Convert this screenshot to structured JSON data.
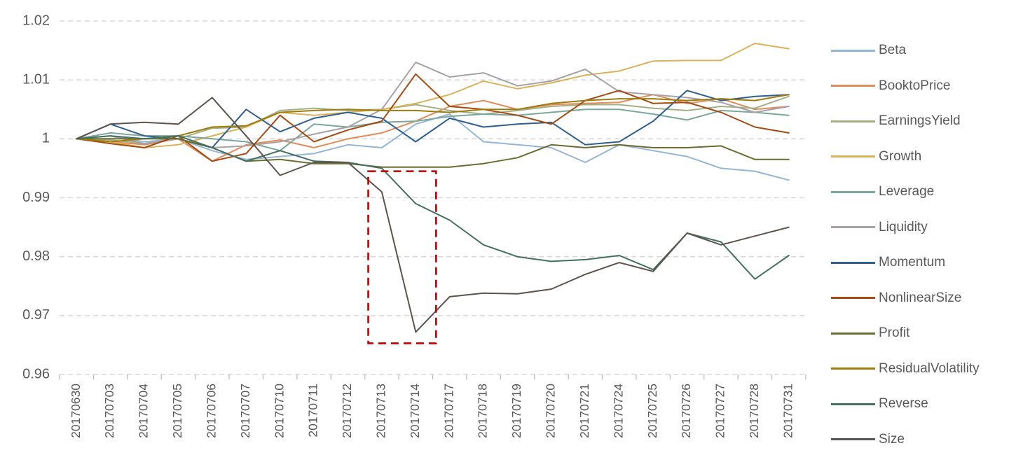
{
  "chart_data": {
    "type": "line",
    "title": "",
    "xlabel": "",
    "ylabel": "",
    "ylim": [
      0.96,
      1.02
    ],
    "yticks": [
      0.96,
      0.97,
      0.98,
      0.99,
      1,
      1.01,
      1.02
    ],
    "ytick_labels": [
      "0.96",
      "0.97",
      "0.98",
      "0.99",
      "1",
      "1.01",
      "1.02"
    ],
    "grid": "horizontal-dashed",
    "legend_position": "right",
    "x": [
      "20170630",
      "20170703",
      "20170704",
      "20170705",
      "20170706",
      "20170707",
      "20170710",
      "20170711",
      "20170712",
      "20170713",
      "20170714",
      "20170717",
      "20170718",
      "20170719",
      "20170720",
      "20170721",
      "20170724",
      "20170725",
      "20170726",
      "20170727",
      "20170728",
      "20170731"
    ],
    "series": [
      {
        "name": "Beta",
        "color": "#94B6D2",
        "values": [
          1.0,
          1.0005,
          0.9995,
          1.0,
          0.998,
          0.9965,
          0.997,
          0.9975,
          0.999,
          0.9985,
          1.0025,
          1.0042,
          0.9995,
          0.999,
          0.9985,
          0.996,
          0.999,
          0.998,
          0.997,
          0.995,
          0.9945,
          0.993
        ]
      },
      {
        "name": "BooktoPrice",
        "color": "#E08C5B",
        "values": [
          1.0,
          0.9995,
          0.999,
          1.0,
          0.9962,
          0.999,
          0.9998,
          0.9985,
          1.0,
          1.001,
          1.003,
          1.0055,
          1.0065,
          1.005,
          1.0058,
          1.006,
          1.0062,
          1.0075,
          1.006,
          1.0068,
          1.005,
          1.0055
        ]
      },
      {
        "name": "EarningsYield",
        "color": "#A3B086",
        "values": [
          1.0,
          0.9998,
          0.9992,
          1.0,
          1.0018,
          1.002,
          1.0048,
          1.0052,
          1.0048,
          1.005,
          1.0058,
          1.0048,
          1.0042,
          1.0048,
          1.0055,
          1.0058,
          1.0058,
          1.0052,
          1.0048,
          1.0055,
          1.0052,
          1.0072
        ]
      },
      {
        "name": "Growth",
        "color": "#D9B359",
        "values": [
          1.0,
          0.9995,
          0.9985,
          0.999,
          1.0005,
          1.002,
          1.0045,
          1.004,
          1.0045,
          1.005,
          1.006,
          1.0075,
          1.0098,
          1.0085,
          1.0095,
          1.0108,
          1.0115,
          1.0132,
          1.0133,
          1.0133,
          1.0162,
          1.0153
        ]
      },
      {
        "name": "Leverage",
        "color": "#7BA79D",
        "values": [
          1.0,
          1.001,
          1.0005,
          1.0005,
          1.0,
          0.9995,
          0.998,
          1.0025,
          1.002,
          1.0028,
          1.003,
          1.0038,
          1.0042,
          1.004,
          1.0045,
          1.005,
          1.005,
          1.0042,
          1.0032,
          1.0048,
          1.0045,
          1.004
        ]
      },
      {
        "name": "Liquidity",
        "color": "#A6A2A6",
        "values": [
          1.0,
          1.0005,
          0.9992,
          1.0,
          0.9985,
          0.9988,
          0.9995,
          1.0008,
          1.002,
          1.005,
          1.013,
          1.0105,
          1.0112,
          1.009,
          1.0098,
          1.0118,
          1.008,
          1.0075,
          1.007,
          1.0062,
          1.0045,
          1.0055
        ]
      },
      {
        "name": "Momentum",
        "color": "#2F5F8F",
        "values": [
          1.0,
          1.0025,
          1.0005,
          1.0,
          0.9985,
          1.005,
          1.0012,
          1.0035,
          1.0045,
          1.0035,
          0.9995,
          1.0035,
          1.002,
          1.0025,
          1.0028,
          0.999,
          0.9995,
          1.003,
          1.0082,
          1.0065,
          1.0072,
          1.0075
        ]
      },
      {
        "name": "NonlinearSize",
        "color": "#A54B11",
        "values": [
          1.0,
          0.9992,
          0.9985,
          1.0005,
          0.9962,
          0.9975,
          1.004,
          0.9995,
          1.0015,
          1.003,
          1.011,
          1.0055,
          1.005,
          1.004,
          1.0025,
          1.0065,
          1.0082,
          1.006,
          1.0062,
          1.0045,
          1.002,
          1.001
        ]
      },
      {
        "name": "Profit",
        "color": "#6B6D31",
        "values": [
          1.0,
          1.0,
          1.0,
          1.0,
          0.9985,
          0.9962,
          0.9965,
          0.9958,
          0.9958,
          0.9952,
          0.9952,
          0.9952,
          0.9958,
          0.9968,
          0.999,
          0.9985,
          0.999,
          0.9985,
          0.9985,
          0.9988,
          0.9965,
          0.9965
        ]
      },
      {
        "name": "ResidualVolatility",
        "color": "#9E7C0C",
        "values": [
          1.0,
          0.9995,
          1.0,
          1.0005,
          1.002,
          1.0022,
          1.0045,
          1.0048,
          1.005,
          1.0048,
          1.0048,
          1.0045,
          1.005,
          1.005,
          1.006,
          1.0065,
          1.0068,
          1.0068,
          1.0065,
          1.0068,
          1.0065,
          1.0075
        ]
      },
      {
        "name": "Reverse",
        "color": "#44705F",
        "values": [
          1.0,
          1.0005,
          1.0,
          1.0005,
          0.9985,
          0.9962,
          0.998,
          0.9962,
          0.996,
          0.995,
          0.989,
          0.9862,
          0.982,
          0.98,
          0.9792,
          0.9795,
          0.9802,
          0.9778,
          0.984,
          0.9825,
          0.9762,
          0.9802
        ]
      },
      {
        "name": "Size",
        "color": "#5C544E",
        "values": [
          1.0,
          1.0025,
          1.0028,
          1.0025,
          1.007,
          1.0005,
          0.9938,
          0.996,
          0.996,
          0.991,
          0.9672,
          0.9732,
          0.9738,
          0.9737,
          0.9745,
          0.977,
          0.979,
          0.9775,
          0.984,
          0.982,
          0.9835,
          0.985
        ]
      }
    ],
    "annotation": {
      "type": "dashed-rectangle",
      "color": "#C00000",
      "x_from": "20170713",
      "x_to": "20170714",
      "x_index_from": 8.6,
      "x_index_to": 10.6,
      "y_top": 0.9945,
      "y_bottom": 0.9653,
      "note": "highlight of sharp Size factor drawdown around 20170713-20170714"
    },
    "style": {
      "gridline_color": "#D9D9D9",
      "tick_color": "#BFBFBF",
      "axis_text_color": "#595959",
      "background": "#FFFFFF"
    }
  }
}
